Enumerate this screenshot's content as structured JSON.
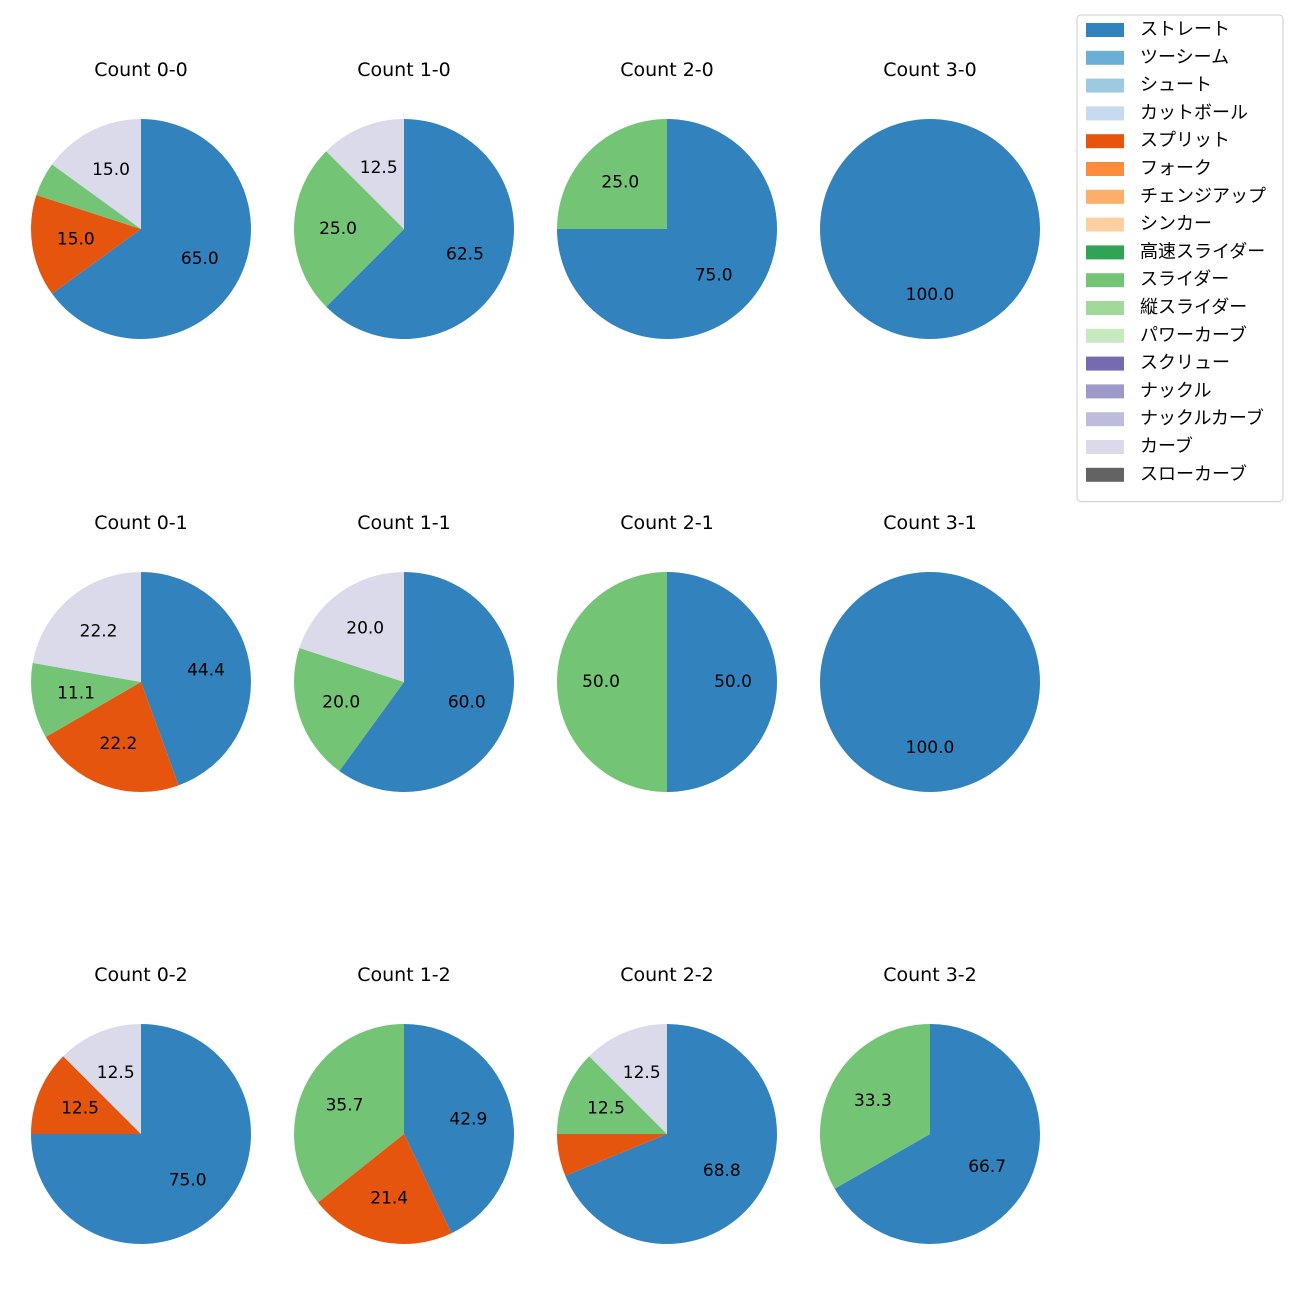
{
  "chart_data": {
    "type": "pie",
    "categories": [
      "ストレート",
      "ツーシーム",
      "シュート",
      "カットボール",
      "スプリット",
      "フォーク",
      "チェンジアップ",
      "シンカー",
      "高速スライダー",
      "スライダー",
      "縦スライダー",
      "パワーカーブ",
      "スクリュー",
      "ナックル",
      "ナックルカーブ",
      "カーブ",
      "スローカーブ"
    ],
    "colors": {
      "ストレート": "#3182bd",
      "ツーシーム": "#6baed6",
      "シュート": "#9ecae1",
      "カットボール": "#c6dbef",
      "スプリット": "#e6550d",
      "フォーク": "#fd8d3c",
      "チェンジアップ": "#fdae6b",
      "シンカー": "#fdd0a2",
      "高速スライダー": "#31a354",
      "スライダー": "#74c476",
      "縦スライダー": "#a1d99b",
      "パワーカーブ": "#c7e9c0",
      "スクリュー": "#756bb1",
      "ナックル": "#9e9ac8",
      "ナックルカーブ": "#bcbddc",
      "カーブ": "#dadaeb",
      "スローカーブ": "#636363"
    },
    "pies": [
      {
        "title": "Count 0-0",
        "slices": [
          {
            "cat": "ストレート",
            "value": 65.0
          },
          {
            "cat": "スプリット",
            "value": 15.0
          },
          {
            "cat": "スライダー",
            "value": 5.0
          },
          {
            "cat": "カーブ",
            "value": 15.0
          }
        ]
      },
      {
        "title": "Count 1-0",
        "slices": [
          {
            "cat": "ストレート",
            "value": 62.5
          },
          {
            "cat": "スライダー",
            "value": 25.0
          },
          {
            "cat": "カーブ",
            "value": 12.5
          }
        ]
      },
      {
        "title": "Count 2-0",
        "slices": [
          {
            "cat": "ストレート",
            "value": 75.0
          },
          {
            "cat": "スライダー",
            "value": 25.0
          }
        ]
      },
      {
        "title": "Count 3-0",
        "slices": [
          {
            "cat": "ストレート",
            "value": 100.0
          }
        ]
      },
      {
        "title": "Count 0-1",
        "slices": [
          {
            "cat": "ストレート",
            "value": 44.4
          },
          {
            "cat": "スプリット",
            "value": 22.2
          },
          {
            "cat": "スライダー",
            "value": 11.1
          },
          {
            "cat": "カーブ",
            "value": 22.2
          }
        ]
      },
      {
        "title": "Count 1-1",
        "slices": [
          {
            "cat": "ストレート",
            "value": 60.0
          },
          {
            "cat": "スライダー",
            "value": 20.0
          },
          {
            "cat": "カーブ",
            "value": 20.0
          }
        ]
      },
      {
        "title": "Count 2-1",
        "slices": [
          {
            "cat": "ストレート",
            "value": 50.0
          },
          {
            "cat": "スライダー",
            "value": 50.0
          }
        ]
      },
      {
        "title": "Count 3-1",
        "slices": [
          {
            "cat": "ストレート",
            "value": 100.0
          }
        ]
      },
      {
        "title": "Count 0-2",
        "slices": [
          {
            "cat": "ストレート",
            "value": 75.0
          },
          {
            "cat": "スプリット",
            "value": 12.5
          },
          {
            "cat": "カーブ",
            "value": 12.5
          }
        ]
      },
      {
        "title": "Count 1-2",
        "slices": [
          {
            "cat": "ストレート",
            "value": 42.9
          },
          {
            "cat": "スプリット",
            "value": 21.4
          },
          {
            "cat": "スライダー",
            "value": 35.7
          }
        ]
      },
      {
        "title": "Count 2-2",
        "slices": [
          {
            "cat": "ストレート",
            "value": 68.8
          },
          {
            "cat": "スプリット",
            "value": 6.2
          },
          {
            "cat": "スライダー",
            "value": 12.5
          },
          {
            "cat": "カーブ",
            "value": 12.5
          }
        ]
      },
      {
        "title": "Count 3-2",
        "slices": [
          {
            "cat": "ストレート",
            "value": 66.7
          },
          {
            "cat": "スライダー",
            "value": 33.3
          }
        ]
      }
    ],
    "label_threshold": 10,
    "legend": {
      "placement": "top-right"
    }
  }
}
